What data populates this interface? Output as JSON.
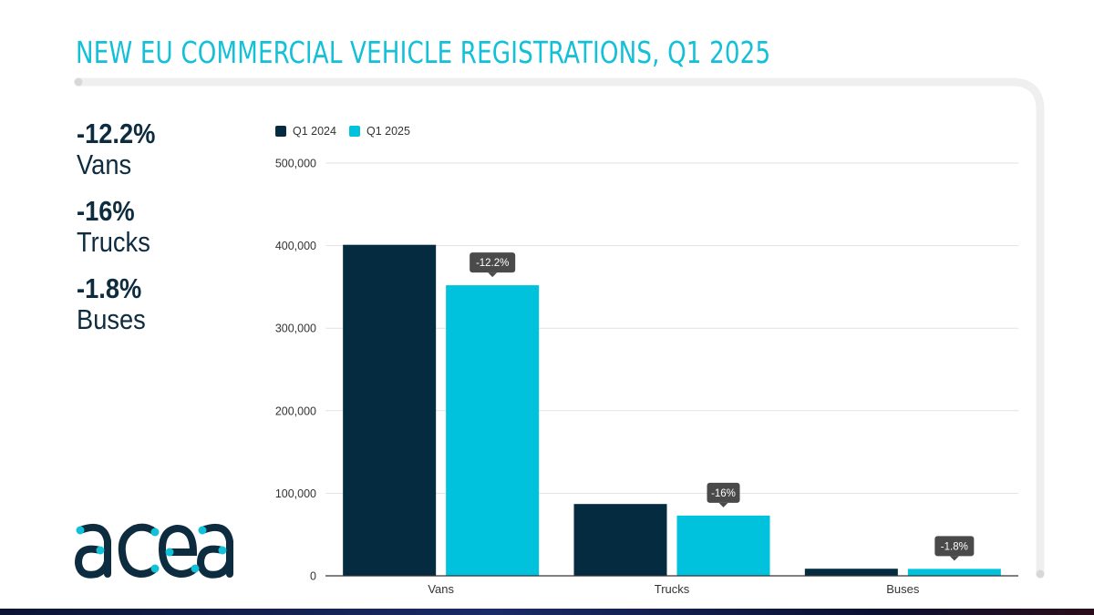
{
  "title": "NEW EU COMMERCIAL VEHICLE REGISTRATIONS, Q1 2025",
  "kpis": [
    {
      "value": "-12.2%",
      "label": "Vans"
    },
    {
      "value": "-16%",
      "label": "Trucks"
    },
    {
      "value": "-1.8%",
      "label": "Buses"
    }
  ],
  "logo": {
    "text": "acea",
    "icon": "acea-logo"
  },
  "colors": {
    "title": "#12c0d8",
    "dark_navy": "#042b40",
    "cyan": "#00c2dc",
    "tooltip_bg": "#4a4a4a",
    "grid": "#e0e0e0",
    "frame": "#efefef"
  },
  "chart_data": {
    "type": "bar",
    "title": "NEW EU COMMERCIAL VEHICLE REGISTRATIONS, Q1 2025",
    "xlabel": "",
    "ylabel": "",
    "categories": [
      "Vans",
      "Trucks",
      "Buses"
    ],
    "series": [
      {
        "name": "Q1 2024",
        "color": "#042b40",
        "values": [
          401000,
          87000,
          8600
        ]
      },
      {
        "name": "Q1 2025",
        "color": "#00c2dc",
        "values": [
          352000,
          73000,
          8400
        ]
      }
    ],
    "annotations": [
      {
        "category": "Vans",
        "series": "Q1 2025",
        "text": "-12.2%"
      },
      {
        "category": "Trucks",
        "series": "Q1 2025",
        "text": "-16%"
      },
      {
        "category": "Buses",
        "series": "Q1 2025",
        "text": "-1.8%"
      }
    ],
    "ylim": [
      0,
      500000
    ],
    "yticks": [
      0,
      100000,
      200000,
      300000,
      400000,
      500000
    ],
    "ytick_labels": [
      "0",
      "100,000",
      "200,000",
      "300,000",
      "400,000",
      "500,000"
    ],
    "grid": true,
    "legend": "top-left"
  }
}
